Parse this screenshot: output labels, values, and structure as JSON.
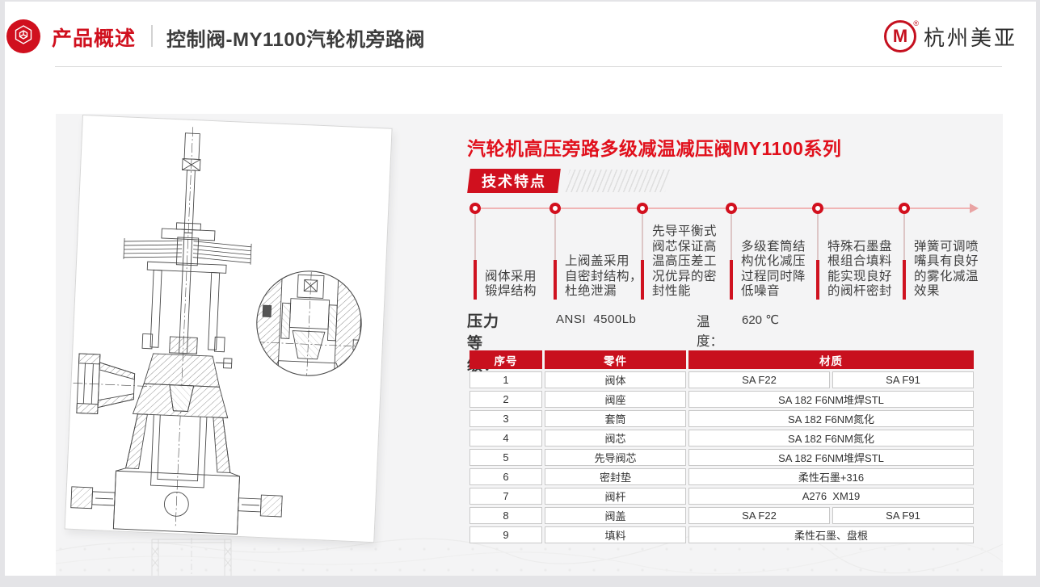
{
  "header": {
    "section_label": "产品概述",
    "page_title": "控制阀-MY1100汽轮机旁路阀",
    "badge_icon": "hexagon-cube-icon",
    "logo": {
      "icon": "m-circle-icon",
      "letter": "M",
      "reg_mark": "®",
      "company": "杭州美亚"
    }
  },
  "content": {
    "product_title": "汽轮机高压旁路多级减温减压阀MY1100系列",
    "features_banner": "技术特点",
    "features": {
      "items": [
        {
          "lines": [
            "阀体采用",
            "锻焊结构"
          ]
        },
        {
          "lines": [
            "上阀盖采用",
            "自密封结构，",
            "杜绝泄漏"
          ]
        },
        {
          "lines": [
            "先导平衡式",
            "阀芯保证高",
            "温高压差工",
            "况优异的密",
            "封性能"
          ]
        },
        {
          "lines": [
            "多级套筒结",
            "构优化减压",
            "过程同时降",
            "低噪音"
          ]
        },
        {
          "lines": [
            "特殊石墨盘",
            "根组合填料",
            "能实现良好",
            "的阀杆密封"
          ]
        },
        {
          "lines": [
            "弹簧可调喷",
            "嘴具有良好",
            "的雾化减温",
            "效果"
          ]
        }
      ]
    },
    "specs": {
      "pressure_label": "压力等级：",
      "pressure_value": "ANSI  4500Lb",
      "temperature_label": "温度：",
      "temperature_value": "620 ℃"
    },
    "table": {
      "columns": [
        "序号",
        "零件",
        "材质"
      ],
      "rows": [
        {
          "no": "1",
          "part": "阀体",
          "materials": [
            "SA F22",
            "SA F91"
          ]
        },
        {
          "no": "2",
          "part": "阀座",
          "materials": [
            "SA 182 F6NM堆焊STL"
          ]
        },
        {
          "no": "3",
          "part": "套筒",
          "materials": [
            "SA 182 F6NM氮化"
          ]
        },
        {
          "no": "4",
          "part": "阀芯",
          "materials": [
            "SA 182 F6NM氮化"
          ]
        },
        {
          "no": "5",
          "part": "先导阀芯",
          "materials": [
            "SA 182 F6NM堆焊STL"
          ]
        },
        {
          "no": "6",
          "part": "密封垫",
          "materials": [
            "柔性石墨+316"
          ]
        },
        {
          "no": "7",
          "part": "阀杆",
          "materials": [
            "A276  XM19"
          ]
        },
        {
          "no": "8",
          "part": "阀盖",
          "materials": [
            "SA F22",
            "SA F91"
          ]
        },
        {
          "no": "9",
          "part": "填料",
          "materials": [
            "柔性石墨、盘根"
          ]
        }
      ]
    }
  },
  "colors": {
    "brand_red": "#d0101e",
    "title_red": "#e1101c",
    "panel_gray": "#f4f4f5",
    "text_dark": "#3c3c3c"
  }
}
